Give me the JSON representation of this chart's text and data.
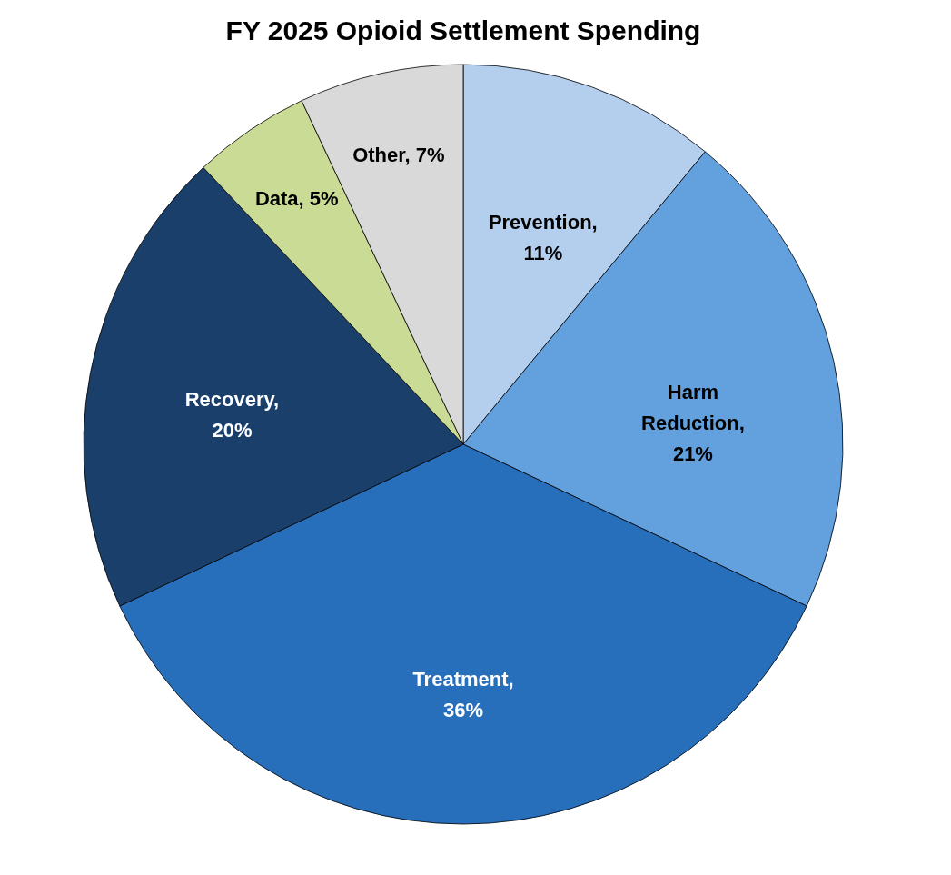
{
  "chart_data": {
    "type": "pie",
    "title": "FY 2025 Opioid Settlement Spending",
    "categories": [
      "Prevention",
      "Harm Reduction",
      "Treatment",
      "Recovery",
      "Data",
      "Other"
    ],
    "values": [
      11,
      21,
      36,
      20,
      5,
      7
    ],
    "colors": [
      "#b4cfee",
      "#62a0de",
      "#286fbb",
      "#1a3f6b",
      "#cadb95",
      "#d9d9d9"
    ],
    "value_labels": [
      ", 11%",
      ", 21%",
      ", 36%",
      ", 20%",
      ", 5%",
      ", 7%"
    ],
    "legend": false
  }
}
